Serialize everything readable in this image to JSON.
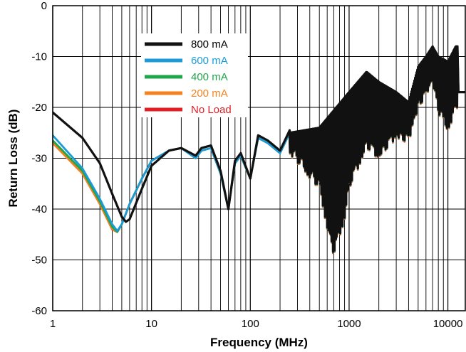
{
  "chart_data": {
    "type": "line",
    "title": "",
    "xlabel": "Frequency (MHz)",
    "ylabel": "Return Loss (dB)",
    "xscale": "log",
    "xlim": [
      1,
      15000
    ],
    "ylim": [
      -60,
      0
    ],
    "x_ticks": [
      1,
      10,
      100,
      1000,
      10000
    ],
    "x_tick_labels": [
      "1",
      "10",
      "100",
      "1000",
      "10000"
    ],
    "y_ticks": [
      0,
      -10,
      -20,
      -30,
      -40,
      -50,
      -60
    ],
    "y_tick_labels": [
      "0",
      "-10",
      "-20",
      "-30",
      "-40",
      "-50",
      "-60"
    ],
    "grid": true,
    "legend_position": "top-center",
    "colors": {
      "800 mA": "#111111",
      "600 mA": "#1a9ad6",
      "400 mA": "#1fa54a",
      "200 mA": "#f5821f",
      "No Load": "#e31d24"
    },
    "series": [
      {
        "name": "No Load",
        "x": [
          1,
          2,
          3,
          4,
          4.5,
          5,
          6,
          8,
          10,
          15,
          20,
          28,
          32,
          40,
          50,
          60,
          70,
          80,
          100,
          120,
          150,
          200,
          250,
          300,
          400,
          500,
          600,
          700,
          800,
          900,
          1000,
          1500,
          2000,
          3000,
          4000,
          5000,
          6000,
          7000,
          8000,
          10000,
          12000,
          15000
        ],
        "y": [
          -27,
          -33,
          -39,
          -44,
          -44.5,
          -43,
          -39,
          -34,
          -30.5,
          -28.5,
          -28,
          -30,
          -28.5,
          -28,
          -33,
          -40,
          -31,
          -29.5,
          -34,
          -26,
          -27,
          -29,
          -25,
          -28,
          -24,
          -36,
          -30,
          -48,
          -40,
          -24,
          -19,
          -13.5,
          -17,
          -19,
          -20,
          -14,
          -12,
          -10.5,
          -13,
          -15,
          -9.5,
          -17
        ]
      },
      {
        "name": "200 mA",
        "x": [
          1,
          2,
          3,
          4,
          4.5,
          5,
          6,
          8,
          10,
          15,
          20,
          28,
          32,
          40,
          50,
          60,
          70,
          80,
          100,
          120,
          150,
          200,
          250,
          300,
          400,
          500,
          600,
          700,
          800,
          900,
          1000,
          1500,
          2000,
          3000,
          4000,
          5000,
          6000,
          7000,
          8000,
          10000,
          12000,
          15000
        ],
        "y": [
          -27,
          -33,
          -39,
          -44,
          -44.5,
          -43,
          -39,
          -34,
          -30.5,
          -28.5,
          -28,
          -30,
          -28.5,
          -28,
          -33,
          -40,
          -31,
          -29.5,
          -34,
          -26,
          -27,
          -29,
          -25,
          -28,
          -24,
          -36,
          -30,
          -48,
          -40,
          -24,
          -19,
          -13.5,
          -17,
          -19,
          -20,
          -14,
          -12,
          -10.5,
          -13,
          -15,
          -9.5,
          -17
        ]
      },
      {
        "name": "400 mA",
        "x": [
          1,
          2,
          3,
          4,
          4.5,
          5,
          6,
          8,
          10,
          15,
          20,
          28,
          32,
          40,
          50,
          60,
          70,
          80,
          100,
          120,
          150,
          200,
          250,
          300,
          400,
          500,
          600,
          700,
          800,
          900,
          1000,
          1500,
          2000,
          3000,
          4000,
          5000,
          6000,
          7000,
          8000,
          10000,
          12000,
          15000
        ],
        "y": [
          -26.5,
          -32.5,
          -38.5,
          -43.5,
          -44.5,
          -43,
          -39,
          -34,
          -30.5,
          -28.5,
          -28,
          -30,
          -28.5,
          -28,
          -33,
          -40,
          -31,
          -29.5,
          -34,
          -26,
          -27,
          -29,
          -25,
          -28,
          -24,
          -36,
          -30,
          -48,
          -40,
          -24,
          -19,
          -13.5,
          -17,
          -19,
          -20,
          -14,
          -12,
          -10.5,
          -13,
          -15,
          -9.5,
          -17
        ]
      },
      {
        "name": "600 mA",
        "x": [
          1,
          2,
          3,
          4,
          4.5,
          5,
          6,
          8,
          10,
          15,
          20,
          28,
          32,
          40,
          50,
          60,
          70,
          80,
          100,
          120,
          150,
          200,
          250,
          300,
          400,
          500,
          600,
          700,
          800,
          900,
          1000,
          1500,
          2000,
          3000,
          4000,
          5000,
          6000,
          7000,
          8000,
          10000,
          12000,
          15000
        ],
        "y": [
          -25.5,
          -32,
          -38,
          -43,
          -44.3,
          -43,
          -39,
          -34,
          -30.5,
          -28.5,
          -28,
          -30,
          -28.5,
          -28,
          -33,
          -40,
          -31,
          -29.5,
          -34,
          -26,
          -27,
          -29,
          -25,
          -28,
          -24,
          -36,
          -30,
          -48,
          -40,
          -24,
          -19,
          -13.5,
          -17,
          -19,
          -20,
          -14,
          -12,
          -10.5,
          -13,
          -15,
          -9.5,
          -17
        ]
      },
      {
        "name": "800 mA",
        "x": [
          1,
          2,
          3,
          4,
          5,
          5.5,
          6,
          8,
          10,
          15,
          20,
          28,
          32,
          40,
          50,
          60,
          70,
          80,
          100,
          120,
          150,
          200,
          250,
          300,
          400,
          500,
          600,
          700,
          800,
          900,
          1000,
          1500,
          2000,
          3000,
          4000,
          5000,
          6000,
          7000,
          8000,
          10000,
          12000,
          15000
        ],
        "y": [
          -21,
          -26,
          -31,
          -37,
          -41.5,
          -42.5,
          -42,
          -36,
          -31.5,
          -28.5,
          -28,
          -29.5,
          -28,
          -27.5,
          -32.5,
          -40,
          -30.5,
          -29,
          -34,
          -25.5,
          -26.5,
          -28.5,
          -24.5,
          -27.5,
          -23.5,
          -35.5,
          -29.5,
          -47.5,
          -39.5,
          -23.5,
          -18.5,
          -13,
          -16.5,
          -18.5,
          -19.5,
          -13.5,
          -11.5,
          -10,
          -12.5,
          -14.5,
          -9,
          -17
        ]
      }
    ],
    "noise": {
      "start": 250,
      "end": 12500,
      "band_high": [
        [
          250,
          -25
        ],
        [
          500,
          -24
        ],
        [
          1000,
          -17
        ],
        [
          1500,
          -13
        ],
        [
          2000,
          -15
        ],
        [
          3000,
          -17
        ],
        [
          4000,
          -19
        ],
        [
          5000,
          -12
        ],
        [
          6000,
          -10
        ],
        [
          7000,
          -8
        ],
        [
          8000,
          -10
        ],
        [
          10000,
          -11
        ],
        [
          12000,
          -8
        ]
      ],
      "band_low": [
        [
          250,
          -29
        ],
        [
          500,
          -36
        ],
        [
          650,
          -47
        ],
        [
          700,
          -49
        ],
        [
          900,
          -42
        ],
        [
          1000,
          -36
        ],
        [
          1500,
          -28
        ],
        [
          2000,
          -30
        ],
        [
          3000,
          -26
        ],
        [
          4000,
          -27
        ],
        [
          5000,
          -20
        ],
        [
          6000,
          -18
        ],
        [
          7000,
          -15
        ],
        [
          8000,
          -21
        ],
        [
          10000,
          -25
        ],
        [
          12000,
          -20
        ]
      ]
    },
    "legend": [
      {
        "label": "800 mA",
        "color": "#111111"
      },
      {
        "label": "600 mA",
        "color": "#1a9ad6"
      },
      {
        "label": "400 mA",
        "color": "#1fa54a"
      },
      {
        "label": "200 mA",
        "color": "#f5821f"
      },
      {
        "label": "No Load",
        "color": "#e31d24"
      }
    ]
  }
}
